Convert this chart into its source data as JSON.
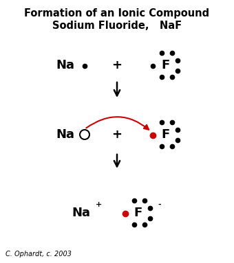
{
  "title_line1": "Formation of an Ionic Compound",
  "title_line2": "Sodium Fluoride,   NaF",
  "bg_color": "#ffffff",
  "black": "#000000",
  "red": "#cc0000",
  "copyright": "C. Ophardt, c. 2003",
  "fig_width": 3.4,
  "fig_height": 3.83,
  "dpi": 100
}
